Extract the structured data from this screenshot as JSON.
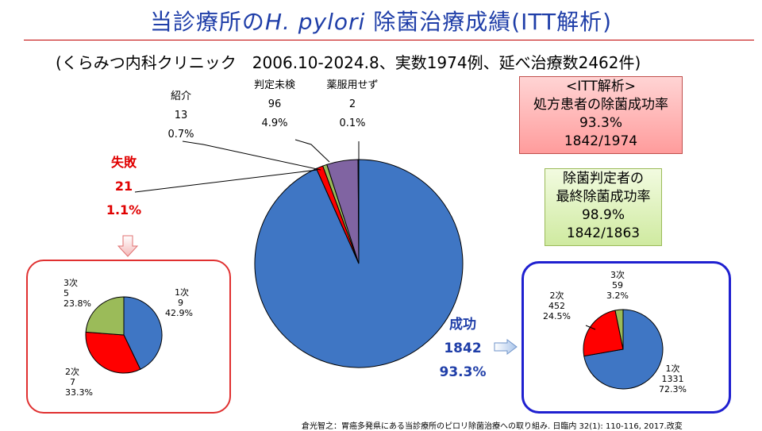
{
  "title": {
    "pre": "当診療所の",
    "italic": "H. pylori",
    "post": " 除菌治療成績(ITT解析)"
  },
  "subtitle": "(くらみつ内科クリニック　2006.10-2024.8、実数1974例、延べ治療数2462件)",
  "info_pink": {
    "l1": "<ITT解析>",
    "l2": "処方患者の除菌成功率",
    "l3": "93.3%",
    "l4": "1842/1974"
  },
  "info_green": {
    "l1": "除菌判定者の",
    "l2": "最終除菌成功率",
    "l3": "98.9%",
    "l4": "1842/1863"
  },
  "footnote": "倉光智之：胃癌多発県にある当診療所のピロリ除菌治療への取り組み. 日臨内 32(1): 110-116, 2017.改変",
  "colors": {
    "blue": "#3f76c4",
    "red": "#ff0000",
    "green": "#9bbb59",
    "purple": "#8064a2",
    "title": "#1f3ea8",
    "fail": "#e00000"
  },
  "chart_data": [
    {
      "type": "pie",
      "categories": [
        "成功",
        "失敗",
        "紹介",
        "判定未検",
        "薬服用せず"
      ],
      "values": [
        1842,
        21,
        13,
        96,
        2
      ],
      "percent": [
        "93.3%",
        "1.1%",
        "0.7%",
        "4.9%",
        "0.1%"
      ],
      "labels": {
        "success": {
          "name": "成功",
          "value": "1842",
          "pct": "93.3%"
        },
        "fail": {
          "name": "失敗",
          "value": "21",
          "pct": "1.1%"
        },
        "refer": {
          "name": "紹介",
          "value": "13",
          "pct": "0.7%"
        },
        "untested": {
          "name": "判定未検",
          "value": "96",
          "pct": "4.9%"
        },
        "notaken": {
          "name": "薬服用せず",
          "value": "2",
          "pct": "0.1%"
        }
      }
    },
    {
      "type": "pie",
      "categories": [
        "1次",
        "2次",
        "3次"
      ],
      "values": [
        9,
        7,
        5
      ],
      "percent": [
        "42.9%",
        "33.3%",
        "23.8%"
      ],
      "labels": {
        "first": {
          "name": "1次",
          "value": "9",
          "pct": "42.9%"
        },
        "second": {
          "name": "2次",
          "value": "7",
          "pct": "33.3%"
        },
        "third": {
          "name": "3次",
          "value": "5",
          "pct": "23.8%"
        }
      }
    },
    {
      "type": "pie",
      "categories": [
        "1次",
        "2次",
        "3次"
      ],
      "values": [
        1331,
        452,
        59
      ],
      "percent": [
        "72.3%",
        "24.5%",
        "3.2%"
      ],
      "labels": {
        "first": {
          "name": "1次",
          "value": "1331",
          "pct": "72.3%"
        },
        "second": {
          "name": "2次",
          "value": "452",
          "pct": "24.5%"
        },
        "third": {
          "name": "3次",
          "value": "59",
          "pct": "3.2%"
        }
      }
    }
  ]
}
